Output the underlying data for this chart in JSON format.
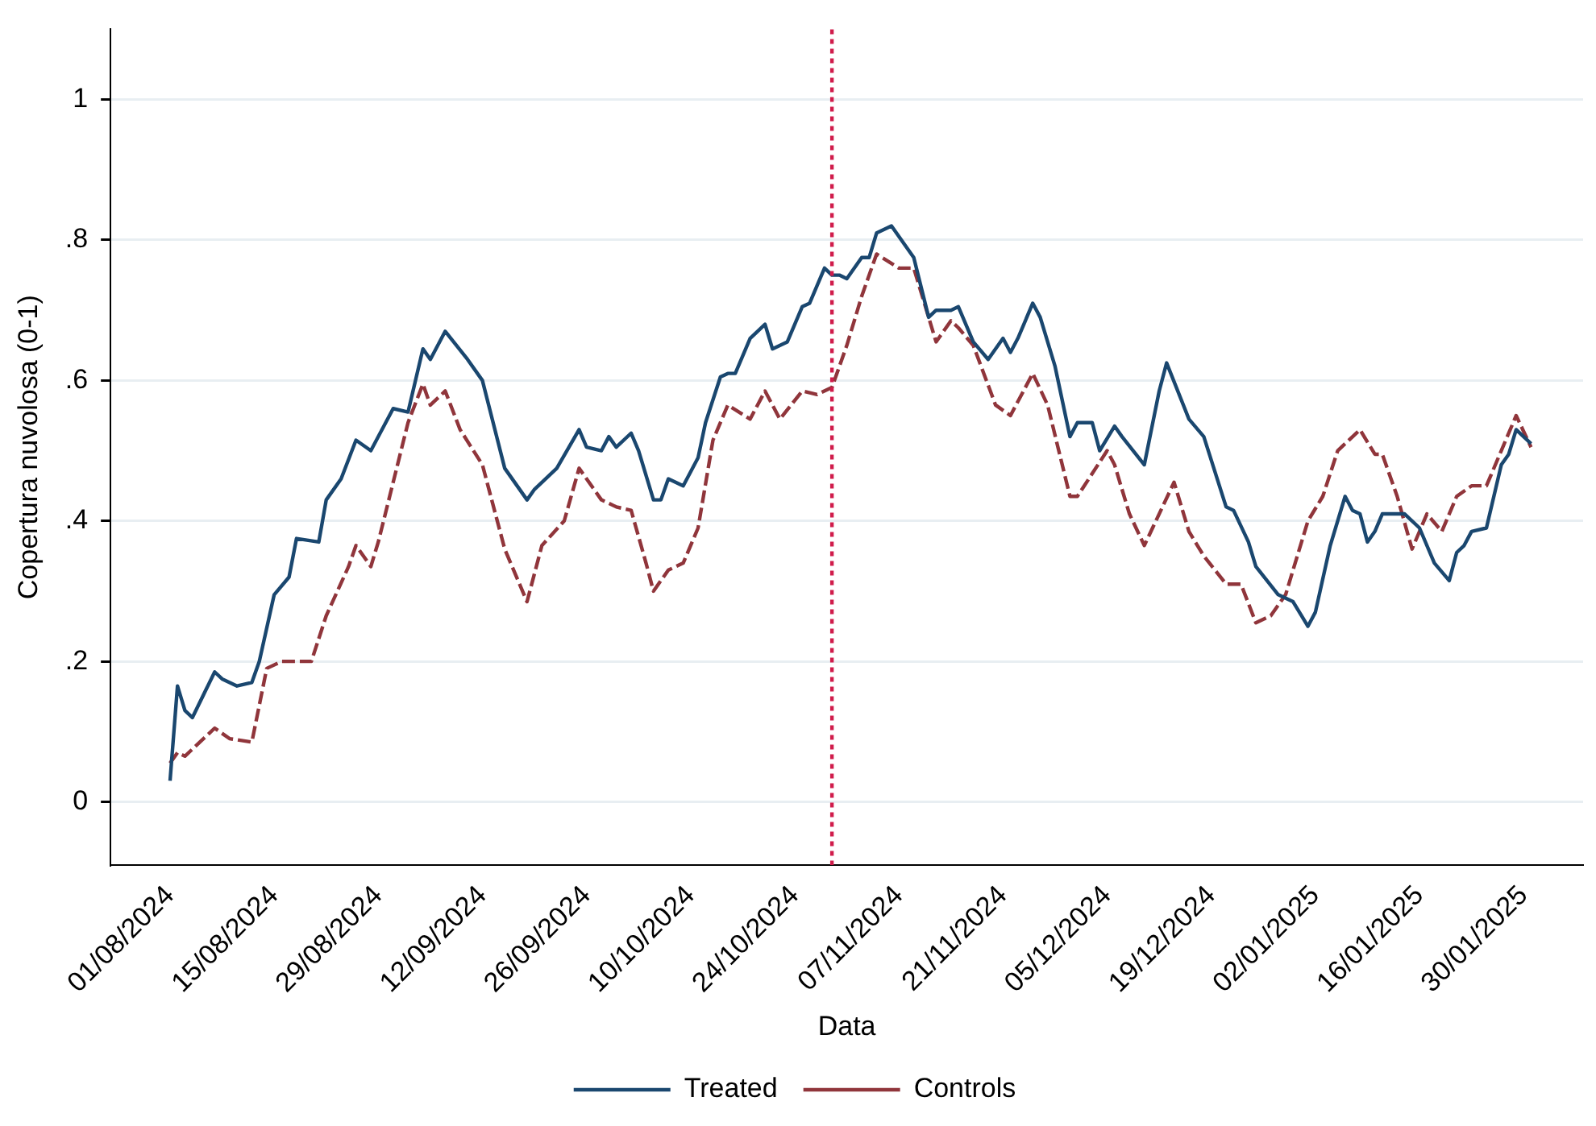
{
  "chart_data": {
    "type": "line",
    "xlabel": "Data",
    "ylabel": "Copertura nuvolosa (0-1)",
    "xlim": [
      "2024-07-24",
      "2025-02-07"
    ],
    "xticks": [
      {
        "value": "2024-08-01",
        "label": "01/08/2024"
      },
      {
        "value": "2024-08-15",
        "label": "15/08/2024"
      },
      {
        "value": "2024-08-29",
        "label": "29/08/2024"
      },
      {
        "value": "2024-09-12",
        "label": "12/09/2024"
      },
      {
        "value": "2024-09-26",
        "label": "26/09/2024"
      },
      {
        "value": "2024-10-10",
        "label": "10/10/2024"
      },
      {
        "value": "2024-10-24",
        "label": "24/10/2024"
      },
      {
        "value": "2024-11-07",
        "label": "07/11/2024"
      },
      {
        "value": "2024-11-21",
        "label": "21/11/2024"
      },
      {
        "value": "2024-12-05",
        "label": "05/12/2024"
      },
      {
        "value": "2024-12-19",
        "label": "19/12/2024"
      },
      {
        "value": "2025-01-02",
        "label": "02/01/2025"
      },
      {
        "value": "2025-01-16",
        "label": "16/01/2025"
      },
      {
        "value": "2025-01-30",
        "label": "30/01/2025"
      }
    ],
    "ylim": [
      -0.09,
      1.1
    ],
    "yticks": [
      0,
      {
        "value": 0.2,
        "label": ".2"
      },
      {
        "value": 0.4,
        "label": ".4"
      },
      {
        "value": 0.6,
        "label": ".6"
      },
      {
        "value": 0.8,
        "label": ".8"
      },
      1
    ],
    "grid": "y",
    "legend": "bottom",
    "marker": "none",
    "ref_lines": [
      {
        "axis": "x",
        "value": "2024-10-29",
        "color": "#d01c4b",
        "line_style": "dotted"
      }
    ],
    "series": [
      {
        "name": "Treated",
        "color": "#1a476f",
        "line_style": "solid",
        "x": [
          "2024-08-01",
          "2024-08-02",
          "2024-08-03",
          "2024-08-04",
          "2024-08-07",
          "2024-08-08",
          "2024-08-10",
          "2024-08-12",
          "2024-08-13",
          "2024-08-15",
          "2024-08-17",
          "2024-08-18",
          "2024-08-21",
          "2024-08-22",
          "2024-08-24",
          "2024-08-26",
          "2024-08-28",
          "2024-08-31",
          "2024-09-02",
          "2024-09-04",
          "2024-09-05",
          "2024-09-07",
          "2024-09-10",
          "2024-09-12",
          "2024-09-15",
          "2024-09-18",
          "2024-09-19",
          "2024-09-22",
          "2024-09-25",
          "2024-09-26",
          "2024-09-28",
          "2024-09-29",
          "2024-09-30",
          "2024-10-02",
          "2024-10-03",
          "2024-10-05",
          "2024-10-06",
          "2024-10-07",
          "2024-10-09",
          "2024-10-11",
          "2024-10-12",
          "2024-10-14",
          "2024-10-15",
          "2024-10-16",
          "2024-10-18",
          "2024-10-20",
          "2024-10-21",
          "2024-10-23",
          "2024-10-25",
          "2024-10-26",
          "2024-10-28",
          "2024-10-29",
          "2024-10-30",
          "2024-10-31",
          "2024-11-02",
          "2024-11-03",
          "2024-11-04",
          "2024-11-06",
          "2024-11-09",
          "2024-11-11",
          "2024-11-12",
          "2024-11-14",
          "2024-11-15",
          "2024-11-17",
          "2024-11-19",
          "2024-11-21",
          "2024-11-22",
          "2024-11-23",
          "2024-11-25",
          "2024-11-26",
          "2024-11-28",
          "2024-11-30",
          "2024-12-01",
          "2024-12-03",
          "2024-12-04",
          "2024-12-06",
          "2024-12-07",
          "2024-12-10",
          "2024-12-12",
          "2024-12-13",
          "2024-12-16",
          "2024-12-18",
          "2024-12-21",
          "2024-12-22",
          "2024-12-24",
          "2024-12-25",
          "2024-12-28",
          "2024-12-30",
          "2025-01-01",
          "2025-01-02",
          "2025-01-04",
          "2025-01-06",
          "2025-01-07",
          "2025-01-08",
          "2025-01-09",
          "2025-01-10",
          "2025-01-11",
          "2025-01-14",
          "2025-01-16",
          "2025-01-18",
          "2025-01-20",
          "2025-01-21",
          "2025-01-22",
          "2025-01-23",
          "2025-01-25",
          "2025-01-27",
          "2025-01-28",
          "2025-01-29",
          "2025-01-31"
        ],
        "values": [
          0.03,
          0.165,
          0.13,
          0.12,
          0.185,
          0.175,
          0.165,
          0.17,
          0.2,
          0.295,
          0.32,
          0.375,
          0.37,
          0.43,
          0.46,
          0.515,
          0.5,
          0.56,
          0.555,
          0.645,
          0.63,
          0.67,
          0.63,
          0.6,
          0.475,
          0.43,
          0.445,
          0.475,
          0.53,
          0.505,
          0.5,
          0.52,
          0.505,
          0.525,
          0.5,
          0.43,
          0.43,
          0.46,
          0.45,
          0.49,
          0.54,
          0.605,
          0.61,
          0.61,
          0.66,
          0.68,
          0.645,
          0.655,
          0.705,
          0.71,
          0.76,
          0.75,
          0.75,
          0.745,
          0.775,
          0.775,
          0.81,
          0.82,
          0.775,
          0.69,
          0.7,
          0.7,
          0.705,
          0.655,
          0.63,
          0.66,
          0.64,
          0.66,
          0.71,
          0.69,
          0.62,
          0.52,
          0.54,
          0.54,
          0.5,
          0.535,
          0.52,
          0.48,
          0.585,
          0.625,
          0.545,
          0.52,
          0.42,
          0.415,
          0.37,
          0.335,
          0.295,
          0.285,
          0.25,
          0.27,
          0.365,
          0.435,
          0.415,
          0.41,
          0.37,
          0.385,
          0.41,
          0.41,
          0.39,
          0.34,
          0.315,
          0.355,
          0.365,
          0.385,
          0.39,
          0.48,
          0.495,
          0.53,
          0.51
        ]
      },
      {
        "name": "Controls",
        "color": "#90353b",
        "line_style": "dashed",
        "x": [
          "2024-08-01",
          "2024-08-02",
          "2024-08-03",
          "2024-08-07",
          "2024-08-09",
          "2024-08-12",
          "2024-08-14",
          "2024-08-16",
          "2024-08-20",
          "2024-08-22",
          "2024-08-25",
          "2024-08-26",
          "2024-08-28",
          "2024-08-29",
          "2024-09-02",
          "2024-09-04",
          "2024-09-05",
          "2024-09-07",
          "2024-09-09",
          "2024-09-12",
          "2024-09-13",
          "2024-09-15",
          "2024-09-18",
          "2024-09-20",
          "2024-09-23",
          "2024-09-25",
          "2024-09-28",
          "2024-09-30",
          "2024-10-02",
          "2024-10-04",
          "2024-10-05",
          "2024-10-07",
          "2024-10-09",
          "2024-10-11",
          "2024-10-13",
          "2024-10-15",
          "2024-10-18",
          "2024-10-20",
          "2024-10-22",
          "2024-10-25",
          "2024-10-27",
          "2024-10-29",
          "2024-10-31",
          "2024-11-02",
          "2024-11-04",
          "2024-11-07",
          "2024-11-09",
          "2024-11-11",
          "2024-11-12",
          "2024-11-14",
          "2024-11-15",
          "2024-11-17",
          "2024-11-20",
          "2024-11-22",
          "2024-11-25",
          "2024-11-27",
          "2024-11-30",
          "2024-12-01",
          "2024-12-05",
          "2024-12-06",
          "2024-12-08",
          "2024-12-10",
          "2024-12-14",
          "2024-12-16",
          "2024-12-18",
          "2024-12-21",
          "2024-12-23",
          "2024-12-25",
          "2024-12-27",
          "2024-12-29",
          "2025-01-01",
          "2025-01-03",
          "2025-01-05",
          "2025-01-08",
          "2025-01-10",
          "2025-01-11",
          "2025-01-13",
          "2025-01-15",
          "2025-01-17",
          "2025-01-19",
          "2025-01-21",
          "2025-01-23",
          "2025-01-25",
          "2025-01-27",
          "2025-01-29",
          "2025-01-31"
        ],
        "values": [
          0.055,
          0.07,
          0.065,
          0.105,
          0.09,
          0.085,
          0.19,
          0.2,
          0.2,
          0.265,
          0.335,
          0.365,
          0.335,
          0.37,
          0.54,
          0.595,
          0.565,
          0.585,
          0.53,
          0.48,
          0.44,
          0.36,
          0.285,
          0.365,
          0.4,
          0.475,
          0.43,
          0.42,
          0.415,
          0.34,
          0.3,
          0.33,
          0.34,
          0.39,
          0.515,
          0.565,
          0.545,
          0.585,
          0.545,
          0.585,
          0.58,
          0.59,
          0.65,
          0.72,
          0.78,
          0.76,
          0.76,
          0.69,
          0.655,
          0.685,
          0.675,
          0.65,
          0.565,
          0.55,
          0.61,
          0.565,
          0.435,
          0.435,
          0.5,
          0.48,
          0.41,
          0.365,
          0.455,
          0.385,
          0.35,
          0.31,
          0.31,
          0.255,
          0.265,
          0.295,
          0.4,
          0.435,
          0.5,
          0.53,
          0.495,
          0.495,
          0.435,
          0.36,
          0.41,
          0.385,
          0.435,
          0.45,
          0.45,
          0.5,
          0.55,
          0.505
        ]
      }
    ]
  }
}
